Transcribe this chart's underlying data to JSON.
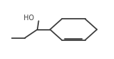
{
  "background_color": "#ffffff",
  "line_color": "#3c3c3c",
  "line_width": 1.3,
  "ho_text": "HO",
  "ho_fontsize": 7.0,
  "fig_width": 1.64,
  "fig_height": 0.85,
  "dpi": 100,
  "xlim": [
    0.05,
    0.95
  ],
  "ylim": [
    0.05,
    0.95
  ]
}
